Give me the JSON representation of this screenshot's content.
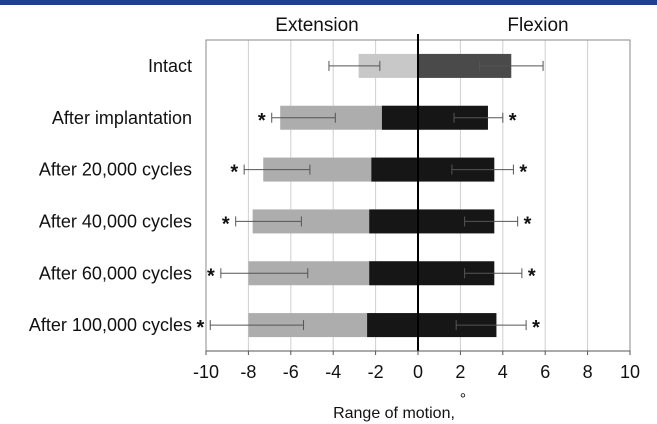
{
  "chart_data": {
    "type": "bar",
    "subtype": "stacked-horizontal-with-error-bars",
    "header_left": "Extension",
    "header_right": "Flexion",
    "xlabel": "Range of motion,",
    "xlabel_unit": "°",
    "xlim": [
      -10,
      10
    ],
    "xticks": [
      -10,
      -8,
      -6,
      -4,
      -2,
      0,
      2,
      4,
      6,
      8,
      10
    ],
    "grid": true,
    "categories": [
      "Intact",
      "After implantation",
      "After 20,000 cycles",
      "After 40,000 cycles",
      "After 60,000 cycles",
      "After 100,000 cycles"
    ],
    "extension": {
      "inner": [
        -2.8,
        -1.7,
        -2.2,
        -2.3,
        -2.3,
        -2.4
      ],
      "total": [
        -2.8,
        -6.5,
        -7.3,
        -7.8,
        -8.0,
        -8.0
      ],
      "error_low": [
        -4.2,
        -6.9,
        -8.2,
        -8.6,
        -9.3,
        -9.8
      ],
      "error_high": [
        -1.8,
        -3.9,
        -5.1,
        -5.5,
        -5.2,
        -5.4
      ],
      "significant": [
        false,
        true,
        true,
        true,
        true,
        true
      ]
    },
    "flexion": {
      "value": [
        4.4,
        3.3,
        3.6,
        3.6,
        3.6,
        3.7
      ],
      "error_low": [
        2.9,
        1.7,
        1.6,
        2.2,
        2.2,
        1.8
      ],
      "error_high": [
        5.9,
        4.0,
        4.5,
        4.7,
        4.9,
        5.1
      ],
      "significant": [
        false,
        true,
        true,
        true,
        true,
        true
      ]
    },
    "significance_marker": "*",
    "colors": {
      "intact_extension": "#c8c8c8",
      "intact_flexion": "#4a4a4a",
      "extension_outer": "#adadad",
      "extension_inner": "#161616",
      "flexion": "#161616",
      "grid": "#cfcfcf",
      "axis": "#000000"
    }
  }
}
